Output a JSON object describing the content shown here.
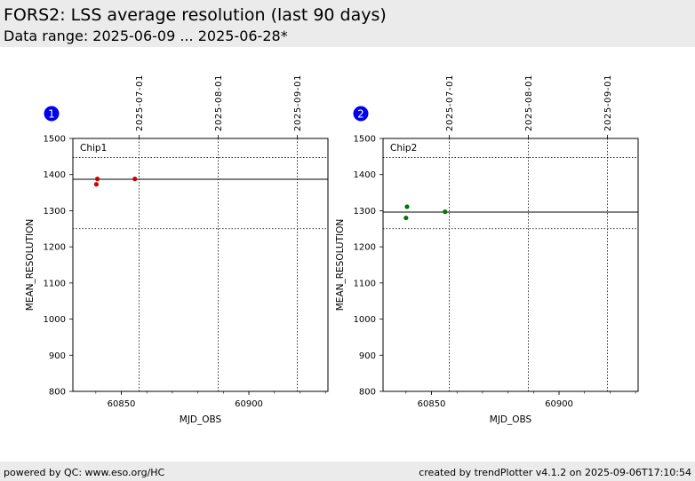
{
  "header": {
    "title": "FORS2: LSS average resolution (last 90 days)",
    "subtitle": "Data range: 2025-06-09 ... 2025-06-28*"
  },
  "footer": {
    "left": "powered by QC: www.eso.org/HC",
    "right": "created by trendPlotter v4.1.2 on 2025-09-06T17:10:54"
  },
  "chart_data": [
    {
      "type": "scatter",
      "badge": "1",
      "panel_label": "Chip1",
      "xlabel": "MJD_OBS",
      "ylabel": "MEAN_RESOLUTION",
      "xlim": [
        60831,
        60931
      ],
      "ylim": [
        800,
        1500
      ],
      "xticks": [
        60850,
        60900
      ],
      "yticks": [
        800,
        900,
        1000,
        1100,
        1200,
        1300,
        1400,
        1500
      ],
      "date_ticks": [
        {
          "label": "2025-07-01",
          "mjd": 60857
        },
        {
          "label": "2025-08-01",
          "mjd": 60888
        },
        {
          "label": "2025-09-01",
          "mjd": 60919
        }
      ],
      "reference_line": 1387,
      "limit_lines": [
        1250,
        1447
      ],
      "point_color": "#cc0000",
      "points": [
        {
          "x": 60840.2,
          "y": 1373
        },
        {
          "x": 60840.6,
          "y": 1388
        },
        {
          "x": 60855.3,
          "y": 1388
        }
      ]
    },
    {
      "type": "scatter",
      "badge": "2",
      "panel_label": "Chip2",
      "xlabel": "MJD_OBS",
      "ylabel": "MEAN_RESOLUTION",
      "xlim": [
        60831,
        60931
      ],
      "ylim": [
        800,
        1500
      ],
      "xticks": [
        60850,
        60900
      ],
      "yticks": [
        800,
        900,
        1000,
        1100,
        1200,
        1300,
        1400,
        1500
      ],
      "date_ticks": [
        {
          "label": "2025-07-01",
          "mjd": 60857
        },
        {
          "label": "2025-08-01",
          "mjd": 60888
        },
        {
          "label": "2025-09-01",
          "mjd": 60919
        }
      ],
      "reference_line": 1296,
      "limit_lines": [
        1250,
        1447
      ],
      "point_color": "#007700",
      "points": [
        {
          "x": 60840.0,
          "y": 1280
        },
        {
          "x": 60840.4,
          "y": 1311
        },
        {
          "x": 60855.3,
          "y": 1297
        }
      ]
    }
  ]
}
